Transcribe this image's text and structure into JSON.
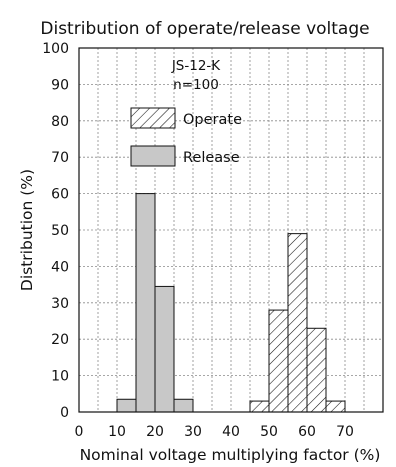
{
  "chart_data": {
    "type": "bar",
    "title": "Distribution of operate/release voltage",
    "xlabel": "Nominal voltage multiplying factor (%)",
    "ylabel": "Distribution (%)",
    "xlim": [
      0,
      80
    ],
    "ylim": [
      0,
      100
    ],
    "xticks": [
      "0",
      "10",
      "20",
      "30",
      "40",
      "50",
      "60",
      "70"
    ],
    "yticks": [
      "0",
      "10",
      "20",
      "30",
      "40",
      "50",
      "60",
      "70",
      "80",
      "90",
      "100"
    ],
    "grid": true,
    "annotation": {
      "model": "JS-12-K",
      "sample": "n=100"
    },
    "legend_position": "top-left",
    "bin_width": 5,
    "series": [
      {
        "name": "Operate",
        "fill": "hatch",
        "color": "#111111",
        "bins": [
          {
            "x": 47.5,
            "value": 3
          },
          {
            "x": 52.5,
            "value": 28
          },
          {
            "x": 57.5,
            "value": 49
          },
          {
            "x": 62.5,
            "value": 23
          },
          {
            "x": 67.5,
            "value": 3
          }
        ]
      },
      {
        "name": "Release",
        "fill": "solid",
        "color": "#c8c8c8",
        "bins": [
          {
            "x": 12.5,
            "value": 3.5
          },
          {
            "x": 17.5,
            "value": 60
          },
          {
            "x": 22.5,
            "value": 34.5
          },
          {
            "x": 27.5,
            "value": 3.5
          }
        ]
      }
    ]
  }
}
